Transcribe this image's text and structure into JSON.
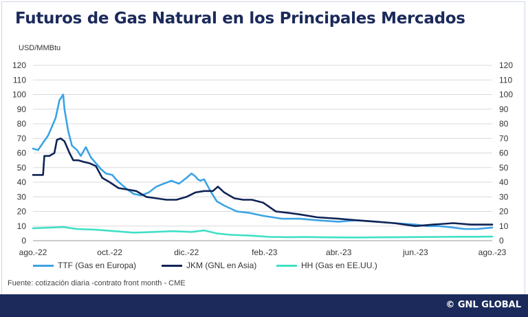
{
  "title": "Futuros de Gas Natural en los Principales Mercados",
  "unit_label": "USD/MMBtu",
  "source_text": "Fuente: cotización diaria -contrato front month - CME",
  "credit": "© GNL GLOBAL",
  "colors": {
    "title": "#1b2a5b",
    "footer": "#1b2a5b",
    "ttf": "#3ba3e4",
    "jkm": "#0f2355",
    "hh": "#3fe0c5",
    "grid": "#d9d9d9"
  },
  "chart_data": {
    "type": "line",
    "title": "Futuros de Gas Natural en los Principales Mercados",
    "ylabel": "USD/MMBtu",
    "xlabel": "",
    "ylim": [
      0,
      120
    ],
    "y_ticks": [
      0,
      10,
      20,
      30,
      40,
      50,
      60,
      70,
      80,
      90,
      100,
      110,
      120
    ],
    "secondary_y_ticks": [
      0,
      10,
      20,
      30,
      40,
      50,
      60,
      70,
      80,
      90,
      100,
      110,
      120
    ],
    "x_range": [
      "2022-08-01",
      "2023-08-01"
    ],
    "x_ticks": [
      {
        "date": "2022-08-01",
        "label": "ago.-22"
      },
      {
        "date": "2022-10-01",
        "label": "oct.-22"
      },
      {
        "date": "2022-12-01",
        "label": "dic.-22"
      },
      {
        "date": "2023-02-01",
        "label": "feb.-23"
      },
      {
        "date": "2023-04-01",
        "label": "abr.-23"
      },
      {
        "date": "2023-06-01",
        "label": "jun.-23"
      },
      {
        "date": "2023-08-01",
        "label": "ago.-23"
      }
    ],
    "grid": true,
    "legend": "bottom",
    "series": [
      {
        "name": "TTF (Gas en Europa)",
        "color": "#3ba3e4",
        "x": [
          "2022-08-01",
          "2022-08-05",
          "2022-08-09",
          "2022-08-13",
          "2022-08-16",
          "2022-08-19",
          "2022-08-22",
          "2022-08-25",
          "2022-08-26",
          "2022-08-29",
          "2022-09-01",
          "2022-09-05",
          "2022-09-08",
          "2022-09-12",
          "2022-09-16",
          "2022-09-20",
          "2022-09-24",
          "2022-09-28",
          "2022-10-03",
          "2022-10-07",
          "2022-10-11",
          "2022-10-15",
          "2022-10-20",
          "2022-10-26",
          "2022-11-01",
          "2022-11-07",
          "2022-11-13",
          "2022-11-19",
          "2022-11-25",
          "2022-12-01",
          "2022-12-05",
          "2022-12-08",
          "2022-12-10",
          "2022-12-12",
          "2022-12-15",
          "2022-12-20",
          "2022-12-25",
          "2022-12-31",
          "2023-01-10",
          "2023-01-20",
          "2023-01-31",
          "2023-02-15",
          "2023-03-01",
          "2023-03-15",
          "2023-04-01",
          "2023-04-15",
          "2023-05-01",
          "2023-05-15",
          "2023-06-01",
          "2023-06-10",
          "2023-06-20",
          "2023-07-01",
          "2023-07-10",
          "2023-07-20",
          "2023-08-01"
        ],
        "y": [
          63,
          62,
          67,
          72,
          78,
          84,
          96,
          100,
          90,
          75,
          65,
          62,
          58,
          64,
          57,
          53,
          49,
          46,
          45,
          41,
          38,
          35,
          32,
          31,
          33,
          37,
          39,
          41,
          39,
          43,
          46,
          44,
          42,
          41,
          42,
          34,
          27,
          24,
          20,
          19,
          17,
          15,
          15,
          14,
          13,
          14,
          13,
          12,
          11,
          10,
          10,
          9,
          8,
          8,
          9
        ]
      },
      {
        "name": "JKM (GNL en Asia)",
        "color": "#0f2355",
        "x": [
          "2022-08-01",
          "2022-08-09",
          "2022-08-10",
          "2022-08-14",
          "2022-08-18",
          "2022-08-20",
          "2022-08-23",
          "2022-08-26",
          "2022-08-30",
          "2022-09-02",
          "2022-09-06",
          "2022-09-10",
          "2022-09-15",
          "2022-09-20",
          "2022-09-25",
          "2022-10-01",
          "2022-10-08",
          "2022-10-15",
          "2022-10-22",
          "2022-10-30",
          "2022-11-07",
          "2022-11-15",
          "2022-11-23",
          "2022-12-01",
          "2022-12-08",
          "2022-12-15",
          "2022-12-22",
          "2022-12-26",
          "2022-12-31",
          "2023-01-08",
          "2023-01-15",
          "2023-01-22",
          "2023-01-31",
          "2023-02-10",
          "2023-02-20",
          "2023-03-01",
          "2023-03-15",
          "2023-04-01",
          "2023-04-15",
          "2023-05-01",
          "2023-05-15",
          "2023-06-01",
          "2023-06-15",
          "2023-07-01",
          "2023-07-15",
          "2023-08-01"
        ],
        "y": [
          45,
          45,
          58,
          58,
          60,
          69,
          70,
          68,
          60,
          55,
          55,
          54,
          53,
          51,
          43,
          40,
          36,
          35,
          34,
          30,
          29,
          28,
          28,
          30,
          33,
          34,
          34,
          37,
          33,
          29,
          28,
          28,
          26,
          20,
          19,
          18,
          16,
          15,
          14,
          13,
          12,
          10,
          11,
          12,
          11,
          11
        ]
      },
      {
        "name": "HH (Gas en EE.UU.)",
        "color": "#3fe0c5",
        "x": [
          "2022-08-01",
          "2022-08-15",
          "2022-08-25",
          "2022-09-05",
          "2022-09-20",
          "2022-10-05",
          "2022-10-20",
          "2022-11-05",
          "2022-11-20",
          "2022-12-05",
          "2022-12-15",
          "2022-12-25",
          "2023-01-05",
          "2023-01-20",
          "2023-02-05",
          "2023-02-20",
          "2023-03-05",
          "2023-03-20",
          "2023-04-05",
          "2023-04-20",
          "2023-05-05",
          "2023-05-20",
          "2023-06-05",
          "2023-06-20",
          "2023-07-05",
          "2023-07-20",
          "2023-08-01"
        ],
        "y": [
          8.5,
          9,
          9.3,
          8,
          7.5,
          6.5,
          5.5,
          6,
          6.5,
          6,
          7,
          5,
          4,
          3.5,
          2.6,
          2.4,
          2.5,
          2.3,
          2.2,
          2.2,
          2.3,
          2.4,
          2.5,
          2.6,
          2.7,
          2.7,
          2.8
        ]
      }
    ]
  }
}
